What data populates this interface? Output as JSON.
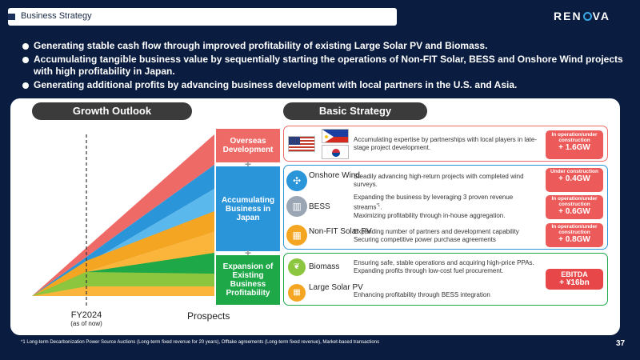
{
  "header": {
    "title": "Business Strategy",
    "logo_text": [
      "REN",
      "VA"
    ]
  },
  "bullets": [
    "Generating stable cash flow through improved profitability of existing Large Solar PV and Biomass.",
    "Accumulating tangible business value by sequentially starting the operations of Non-FIT Solar, BESS and Onshore Wind projects with high profitability in Japan.",
    "Generating additional profits by advancing business development with local partners in the U.S. and Asia."
  ],
  "growth": {
    "title": "Growth Outlook",
    "fy_label": "FY2024",
    "fy_sub": "(as of now)",
    "prospects_label": "Prospects",
    "categories": [
      "Overseas Development",
      "Accumulating Business in Japan",
      "Expansion of Existing Business Profitability"
    ],
    "plus": "+"
  },
  "basic": {
    "title": "Basic Strategy",
    "overseas": {
      "desc": "Accumulating expertise by partnerships with local players in late-stage project development.",
      "badge_label": "In operation/under construction",
      "badge_value": "+ 1.6GW"
    },
    "onshore": {
      "label": "Onshore Wind",
      "desc": "Steadily advancing high-return projects with completed wind surveys.",
      "badge_label": "Under construction",
      "badge_value": "+ 0.4GW"
    },
    "bess": {
      "label": "BESS",
      "desc1": "Expanding the business by leveraging 3 proven revenue streams",
      "sup": "*1",
      "desc2": "Maximizing profitability through in-house aggregation.",
      "badge_label": "In operation/under construction",
      "badge_value": "+ 0.6GW"
    },
    "nonfit": {
      "label": "Non-FIT Solar PV",
      "desc": "Expanding number of partners and development capability Securing competitive power purchase agreements",
      "badge_label": "In operation/under construction",
      "badge_value": "+ 0.8GW"
    },
    "biomass": {
      "label": "Biomass",
      "desc": "Ensuring safe, stable operations and acquiring high-price PPAs. Expanding profits through low-cost fuel procurement."
    },
    "solar": {
      "label": "Large Solar PV",
      "desc": "Enhancing profitability through BESS integration"
    },
    "ebitda": {
      "label": "EBITDA",
      "value": "+ ¥16bn"
    }
  },
  "footnote": "*1 Long-term Decarbonization Power Source Auctions (Long-term fixed revenue for 20 years), Offtake agreements (Long-term fixed revenue), Market-based transactions",
  "page_number": "37",
  "colors": {
    "overseas": "#ee6a67",
    "japan": "#2b95da",
    "existing": "#1ea848",
    "badge": "#ec5b5a"
  },
  "icons": {
    "wind": "wind-turbine-icon",
    "bess": "battery-icon",
    "nonfit": "solar-panel-icon",
    "biomass": "leaf-icon",
    "solar": "solar-panel-icon"
  }
}
